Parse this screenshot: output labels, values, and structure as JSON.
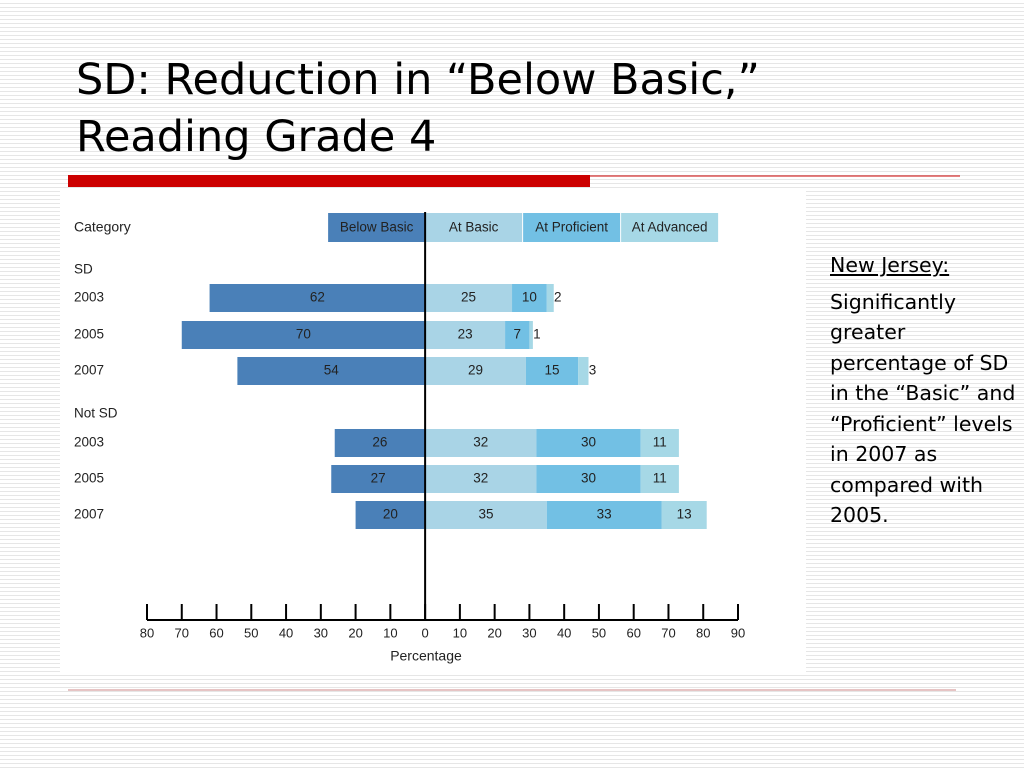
{
  "title_lines": [
    "SD: Reduction in “Below Basic,”",
    "Reading Grade 4"
  ],
  "side_note": {
    "heading": "New Jersey:",
    "text": "Significantly greater percentage of SD in the “Basic” and “Proficient” levels in 2007 as compared with 2005."
  },
  "chart_data": {
    "type": "diverging_bar",
    "legend_title": "Category",
    "legend": "top",
    "x_label": "Percentage",
    "categories": [
      "SD",
      "2003",
      "2005",
      "2007",
      "Not SD",
      "2003",
      "2005",
      "2007"
    ],
    "series": [
      {
        "name": "Below Basic",
        "color": "#4a80b8",
        "values": [
          null,
          -62,
          -70,
          -54,
          null,
          -26,
          -27,
          -20
        ],
        "value_labels": [
          null,
          "62",
          "70",
          "54",
          null,
          "26",
          "27",
          "20"
        ]
      },
      {
        "name": "At Basic",
        "color": "#a9d4e6",
        "values": [
          null,
          25,
          23,
          29,
          null,
          32,
          32,
          35
        ]
      },
      {
        "name": "At Proficient",
        "color": "#72c0e4",
        "values": [
          null,
          10,
          7,
          15,
          null,
          30,
          30,
          33
        ]
      },
      {
        "name": "At Advanced",
        "color": "#a6d8e6",
        "values": [
          null,
          2,
          1,
          3,
          null,
          11,
          11,
          13
        ]
      }
    ],
    "xlim": [
      -80,
      90
    ],
    "xticks": [
      {
        "value": -80,
        "label": "80"
      },
      {
        "value": -70,
        "label": "70"
      },
      {
        "value": -60,
        "label": "60"
      },
      {
        "value": -50,
        "label": "50"
      },
      {
        "value": -40,
        "label": "40"
      },
      {
        "value": -30,
        "label": "30"
      },
      {
        "value": -20,
        "label": "20"
      },
      {
        "value": -10,
        "label": "10"
      },
      0,
      10,
      20,
      30,
      40,
      50,
      60,
      70,
      80,
      90
    ]
  }
}
